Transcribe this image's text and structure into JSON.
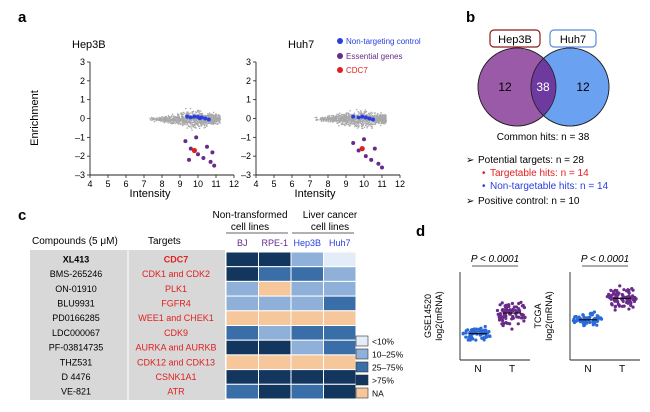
{
  "panel_a": {
    "letter": "a",
    "legend": [
      {
        "label": "Non-targeting control",
        "color": "#2a3ee0"
      },
      {
        "label": "Essential genes",
        "color": "#6a2a8a"
      },
      {
        "label": "CDC7",
        "color": "#e02020"
      }
    ]
  },
  "panel_b": {
    "letter": "b",
    "left_label": "Hep3B",
    "right_label": "Huh7",
    "left_only": "12",
    "overlap": "38",
    "right_only": "12",
    "common_hits": "Common hits: n = 38",
    "potential_targets": "Potential targets: n = 28",
    "targetable": "Targetable hits: n = 14",
    "non_targetable": "Non-targetable hits: n = 14",
    "positive_control": "Positive control: n = 10",
    "colors": {
      "left": "#9b5aa8",
      "right": "#6aa1f0",
      "overlap": "#6e3aa0",
      "left_border": "#8b1a1a",
      "right_border": "#5a8ad8"
    }
  },
  "panel_c": {
    "letter": "c",
    "header_group1": "Non-transformed cell lines",
    "header_group2": "Liver cancer cell lines",
    "compounds_header": "Compounds (5 μM)",
    "targets_header": "Targets",
    "cell_lines": [
      {
        "name": "BJ",
        "color": "#6a2a8a"
      },
      {
        "name": "RPE-1",
        "color": "#6a2a8a"
      },
      {
        "name": "Hep3B",
        "color": "#2a3ee0"
      },
      {
        "name": "Huh7",
        "color": "#2a3ee0"
      }
    ],
    "rows": [
      {
        "compound": "XL413",
        "target": "CDC7",
        "bold": true
      },
      {
        "compound": "BMS-265246",
        "target": "CDK1 and CDK2"
      },
      {
        "compound": "ON-01910",
        "target": "PLK1"
      },
      {
        "compound": "BLU9931",
        "target": "FGFR4"
      },
      {
        "compound": "PD0166285",
        "target": "WEE1 and CHEK1"
      },
      {
        "compound": "LDC000067",
        "target": "CDK9"
      },
      {
        "compound": "PF-03814735",
        "target": "AURKA and AURKB"
      },
      {
        "compound": "THZ531",
        "target": "CDK12 and CDK13"
      },
      {
        "compound": "D 4476",
        "target": "CSNK1A1"
      },
      {
        "compound": "VE-821",
        "target": "ATR"
      }
    ],
    "heatmap": [
      [
        3,
        3,
        1,
        0
      ],
      [
        3,
        2,
        2,
        1
      ],
      [
        1,
        4,
        1,
        1
      ],
      [
        1,
        1,
        1,
        2
      ],
      [
        4,
        4,
        4,
        4
      ],
      [
        2,
        1,
        2,
        2
      ],
      [
        3,
        3,
        1,
        2
      ],
      [
        4,
        4,
        4,
        4
      ],
      [
        3,
        3,
        3,
        3
      ],
      [
        2,
        3,
        2,
        3
      ]
    ],
    "legend": [
      {
        "label": "<10%",
        "color": "#e4ecf7"
      },
      {
        "label": "10–25%",
        "color": "#8fb0d8"
      },
      {
        "label": "25–75%",
        "color": "#3a6ea8"
      },
      {
        "label": ">75%",
        "color": "#13365e"
      },
      {
        "label": "NA",
        "color": "#f5c79a"
      }
    ]
  },
  "panel_d": {
    "letter": "d",
    "plots": [
      {
        "ylabel_dataset": "GSE14520",
        "ylabel_measure": "log2(mRNA)",
        "pvalue": "P < 0.0001",
        "x_labels": [
          "N",
          "T"
        ],
        "colors": [
          "#2a6ad8",
          "#6a2a8a"
        ]
      },
      {
        "ylabel_dataset": "TCGA",
        "ylabel_measure": "log2(mRNA)",
        "pvalue": "P < 0.0001",
        "x_labels": [
          "N",
          "T"
        ],
        "colors": [
          "#2a6ad8",
          "#6a2a8a"
        ]
      }
    ]
  },
  "chart_data": [
    {
      "type": "scatter",
      "title": "Hep3B",
      "xlabel": "Intensity",
      "ylabel": "Enrichment",
      "xlim": [
        4,
        12
      ],
      "ylim": [
        -3,
        3
      ],
      "x_ticks": [
        "4",
        "5",
        "6",
        "7",
        "8",
        "9",
        "10",
        "11",
        "12"
      ],
      "y_ticks": [
        "3",
        "2",
        "1",
        "0",
        "–1",
        "–2",
        "–3"
      ],
      "series": [
        {
          "name": "Non-targeting control",
          "values": [
            [
              9.4,
              0.1
            ],
            [
              9.6,
              0.05
            ],
            [
              9.8,
              0.1
            ],
            [
              10.0,
              0.08
            ],
            [
              10.2,
              0.05
            ],
            [
              10.4,
              0.0
            ],
            [
              10.6,
              -0.05
            ],
            [
              10.1,
              0.02
            ]
          ]
        },
        {
          "name": "Essential genes",
          "values": [
            [
              9.3,
              -1.2
            ],
            [
              9.6,
              -1.6
            ],
            [
              10.0,
              -1.9
            ],
            [
              10.3,
              -2.1
            ],
            [
              10.7,
              -2.3
            ],
            [
              10.9,
              -2.5
            ],
            [
              10.5,
              -1.5
            ],
            [
              9.9,
              -1.0
            ],
            [
              10.8,
              -1.8
            ],
            [
              9.5,
              -2.2
            ]
          ]
        },
        {
          "name": "CDC7",
          "values": [
            [
              9.8,
              -1.7
            ]
          ]
        }
      ]
    },
    {
      "type": "scatter",
      "title": "Huh7",
      "xlabel": "Intensity",
      "ylabel": "",
      "xlim": [
        4,
        12
      ],
      "ylim": [
        -3,
        3
      ],
      "x_ticks": [
        "4",
        "5",
        "6",
        "7",
        "8",
        "9",
        "10",
        "11",
        "12"
      ],
      "y_ticks": [
        "3",
        "2",
        "1",
        "0",
        "–1",
        "–2",
        "–3"
      ],
      "series": [
        {
          "name": "Non-targeting control",
          "values": [
            [
              9.4,
              0.1
            ],
            [
              9.7,
              0.05
            ],
            [
              9.9,
              0.1
            ],
            [
              10.1,
              0.05
            ],
            [
              10.3,
              0.0
            ],
            [
              10.5,
              -0.05
            ]
          ]
        },
        {
          "name": "Essential genes",
          "values": [
            [
              9.4,
              -1.3
            ],
            [
              9.7,
              -1.7
            ],
            [
              10.1,
              -2.0
            ],
            [
              10.4,
              -2.2
            ],
            [
              10.8,
              -2.4
            ],
            [
              11.0,
              -2.6
            ],
            [
              10.6,
              -1.6
            ],
            [
              10.0,
              -1.1
            ]
          ]
        },
        {
          "name": "CDC7",
          "values": [
            [
              9.9,
              -1.6
            ]
          ]
        }
      ]
    }
  ]
}
